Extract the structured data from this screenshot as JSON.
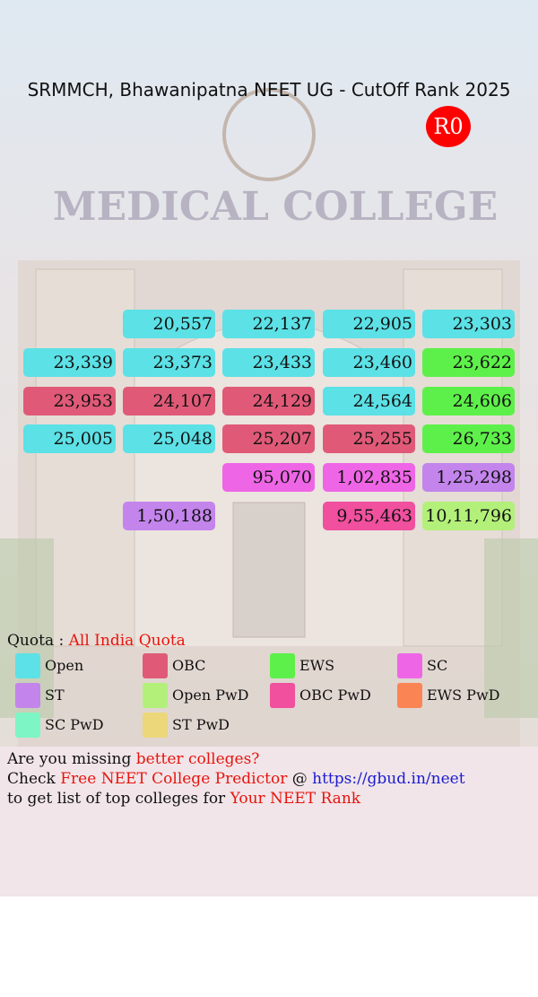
{
  "header": {
    "title": "SRMMCH, Bhawanipatna NEET UG - CutOff Rank 2025",
    "badge": "R0"
  },
  "background_sign": "MEDICAL COLLEGE",
  "grid": {
    "rows": [
      [
        null,
        {
          "label": "20,557",
          "color": "#5ce1e6"
        },
        {
          "label": "22,137",
          "color": "#5ce1e6"
        },
        {
          "label": "22,905",
          "color": "#5ce1e6"
        },
        {
          "label": "23,303",
          "color": "#5ce1e6"
        }
      ],
      [
        {
          "label": "23,339",
          "color": "#5ce1e6"
        },
        {
          "label": "23,373",
          "color": "#5ce1e6"
        },
        {
          "label": "23,433",
          "color": "#5ce1e6"
        },
        {
          "label": "23,460",
          "color": "#5ce1e6"
        },
        {
          "label": "23,622",
          "color": "#5ef04a"
        }
      ],
      [
        {
          "label": "23,953",
          "color": "#e05a78"
        },
        {
          "label": "24,107",
          "color": "#e05a78"
        },
        {
          "label": "24,129",
          "color": "#e05a78"
        },
        {
          "label": "24,564",
          "color": "#5ce1e6"
        },
        {
          "label": "24,606",
          "color": "#5ef04a"
        }
      ],
      [
        {
          "label": "25,005",
          "color": "#5ce1e6"
        },
        {
          "label": "25,048",
          "color": "#5ce1e6"
        },
        {
          "label": "25,207",
          "color": "#e05a78"
        },
        {
          "label": "25,255",
          "color": "#e05a78"
        },
        {
          "label": "26,733",
          "color": "#5ef04a"
        }
      ],
      [
        null,
        null,
        {
          "label": "95,070",
          "color": "#ee66e6"
        },
        {
          "label": "1,02,835",
          "color": "#ee66e6"
        },
        {
          "label": "1,25,298",
          "color": "#c384ec"
        }
      ],
      [
        null,
        {
          "label": "1,50,188",
          "color": "#c384ec"
        },
        null,
        {
          "label": "9,55,463",
          "color": "#f0509e"
        },
        {
          "label": "10,11,796",
          "color": "#b3f07a"
        }
      ]
    ]
  },
  "quota": {
    "label": "Quota :",
    "value": "All India Quota"
  },
  "legend": [
    {
      "name": "Open",
      "color": "#5ce1e6"
    },
    {
      "name": "OBC",
      "color": "#e05a78"
    },
    {
      "name": "EWS",
      "color": "#5ef04a"
    },
    {
      "name": "SC",
      "color": "#ee66e6"
    },
    {
      "name": "ST",
      "color": "#c384ec"
    },
    {
      "name": "Open PwD",
      "color": "#b3f07a"
    },
    {
      "name": "OBC PwD",
      "color": "#f0509e"
    },
    {
      "name": "EWS PwD",
      "color": "#fb8455"
    },
    {
      "name": "SC PwD",
      "color": "#7ef5c4"
    },
    {
      "name": "ST PwD",
      "color": "#ecd77a"
    }
  ],
  "footer": {
    "lines": [
      [
        {
          "text": "Are you missing "
        },
        {
          "text": "better colleges?",
          "color": "#e8140c"
        }
      ],
      [
        {
          "text": "Check "
        },
        {
          "text": "Free NEET College Predictor",
          "color": "#e8140c"
        },
        {
          "text": " @ "
        },
        {
          "text": "https://gbud.in/neet",
          "color": "#1a1ad0"
        }
      ],
      [
        {
          "text": "to get list of top colleges for "
        },
        {
          "text": "Your NEET Rank",
          "color": "#e8140c"
        }
      ]
    ]
  }
}
